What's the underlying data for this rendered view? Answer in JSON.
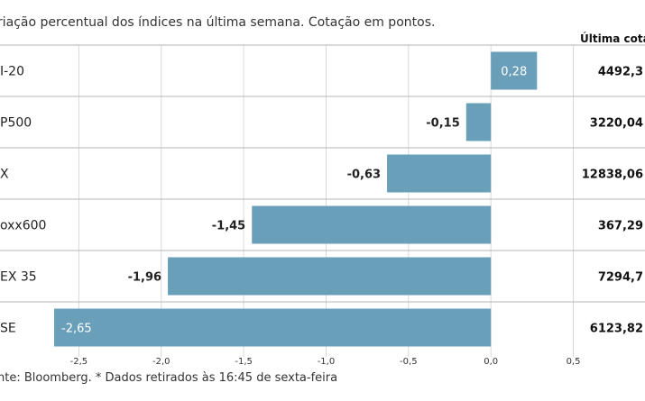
{
  "subtitle": "riação percentual dos índices na última semana. Cotação em pontos.",
  "column_header": "Última cotaç",
  "source": "nte: Bloomberg.  * Dados retirados às 16:45 de sexta-feira",
  "colors": {
    "bar": "#6a9fba",
    "inside_label": "#ffffff",
    "row_line": "#b5b5b5",
    "gridline": "#d9d9d9",
    "tick_label": "#333333"
  },
  "chart_data": {
    "type": "bar",
    "orientation": "horizontal",
    "categories": [
      "I-20",
      "P500",
      "X",
      "oxx600",
      "EX 35",
      "SE"
    ],
    "values": [
      0.28,
      -0.15,
      -0.63,
      -1.45,
      -1.96,
      -2.65
    ],
    "value_labels": [
      "0,28",
      "-0,15",
      "-0,63",
      "-1,45",
      "-1,96",
      "-2,65"
    ],
    "last_quote_labels": [
      "4492,3",
      "3220,04",
      "12838,06",
      "367,29",
      "7294,7",
      "6123,82"
    ],
    "xlim": [
      -2.65,
      0.53
    ],
    "x_ticks": [
      -2.5,
      -2.0,
      -1.5,
      -1.0,
      -0.5,
      0.0,
      0.5
    ],
    "x_tick_labels": [
      "-2,5",
      "-2,0",
      "-1,5",
      "-1,0",
      "-0,5",
      "0,0",
      "0,5"
    ],
    "grid": true,
    "legend": "none"
  }
}
